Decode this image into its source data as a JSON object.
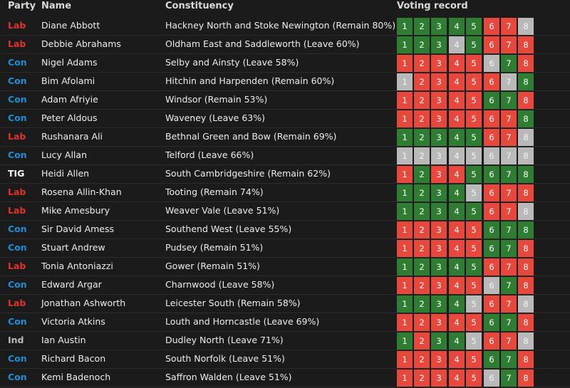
{
  "header": {
    "party": "Party",
    "name": "Name",
    "constituency": "Constituency",
    "voting_record": "Voting record"
  },
  "colors": {
    "party": {
      "Lab": "#e0322b",
      "Con": "#1a8fd6",
      "TIG": "#ffffff",
      "Ind": "#bbbbbb"
    },
    "vote_status": {
      "aye": "#2e7d32",
      "no": "#e8483b",
      "absent": "#b9b9b9"
    }
  },
  "vote_legend": {
    "g": "aye",
    "r": "no",
    "x": "absent"
  },
  "rows": [
    {
      "party": "Lab",
      "name": "Diane Abbott",
      "constituency": "Hackney North and Stoke Newington (Remain 80%)",
      "votes": "gggggrrx"
    },
    {
      "party": "Lab",
      "name": "Debbie Abrahams",
      "constituency": "Oldham East and Saddleworth (Leave 60%)",
      "votes": "gggxgrrr"
    },
    {
      "party": "Con",
      "name": "Nigel Adams",
      "constituency": "Selby and Ainsty (Leave 58%)",
      "votes": "rrrrrxgr"
    },
    {
      "party": "Con",
      "name": "Bim Afolami",
      "constituency": "Hitchin and Harpenden (Remain 60%)",
      "votes": "xrrrrrxg"
    },
    {
      "party": "Con",
      "name": "Adam Afriyie",
      "constituency": "Windsor (Remain 53%)",
      "votes": "rrrrrggr"
    },
    {
      "party": "Con",
      "name": "Peter Aldous",
      "constituency": "Waveney (Leave 63%)",
      "votes": "rrrrrrrg"
    },
    {
      "party": "Lab",
      "name": "Rushanara Ali",
      "constituency": "Bethnal Green and Bow (Remain 69%)",
      "votes": "gggggrrx"
    },
    {
      "party": "Con",
      "name": "Lucy Allan",
      "constituency": "Telford (Leave 66%)",
      "votes": "xxxxxxxx"
    },
    {
      "party": "TIG",
      "name": "Heidi Allen",
      "constituency": "South Cambridgeshire (Remain 62%)",
      "votes": "rgrrgggg"
    },
    {
      "party": "Lab",
      "name": "Rosena Allin-Khan",
      "constituency": "Tooting (Remain 74%)",
      "votes": "ggggxrrr"
    },
    {
      "party": "Lab",
      "name": "Mike Amesbury",
      "constituency": "Weaver Vale (Leave 51%)",
      "votes": "gggggrrx"
    },
    {
      "party": "Con",
      "name": "Sir David Amess",
      "constituency": "Southend West (Leave 55%)",
      "votes": "rrrrrggg"
    },
    {
      "party": "Con",
      "name": "Stuart Andrew",
      "constituency": "Pudsey (Remain 51%)",
      "votes": "rrrrrggr"
    },
    {
      "party": "Lab",
      "name": "Tonia Antoniazzi",
      "constituency": "Gower (Remain 51%)",
      "votes": "gggggrrr"
    },
    {
      "party": "Con",
      "name": "Edward Argar",
      "constituency": "Charnwood (Leave 58%)",
      "votes": "rrrrrxgr"
    },
    {
      "party": "Lab",
      "name": "Jonathan Ashworth",
      "constituency": "Leicester South (Remain 58%)",
      "votes": "ggggxrrx"
    },
    {
      "party": "Con",
      "name": "Victoria Atkins",
      "constituency": "Louth and Horncastle (Leave 69%)",
      "votes": "rrrrrggr"
    },
    {
      "party": "Ind",
      "name": "Ian Austin",
      "constituency": "Dudley North (Leave 71%)",
      "votes": "grggxrrx"
    },
    {
      "party": "Con",
      "name": "Richard Bacon",
      "constituency": "South Norfolk (Leave 51%)",
      "votes": "rrrrrggr"
    },
    {
      "party": "Con",
      "name": "Kemi Badenoch",
      "constituency": "Saffron Walden (Leave 51%)",
      "votes": "rrrrrxgr"
    }
  ]
}
